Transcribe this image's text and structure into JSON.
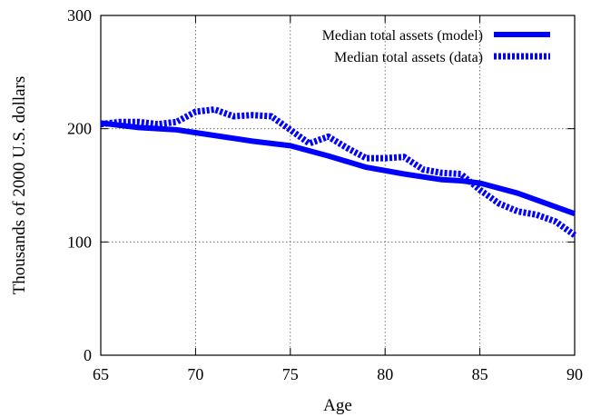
{
  "chart_data": {
    "type": "line",
    "xlabel": "Age",
    "ylabel": "Thousands of 2000 U.S. dollars",
    "xlim": [
      65,
      90
    ],
    "ylim": [
      0,
      300
    ],
    "x_ticks": [
      "65",
      "70",
      "75",
      "80",
      "85",
      "90"
    ],
    "y_ticks": [
      "0",
      "100",
      "200",
      "300"
    ],
    "grid": true,
    "legend_position": "top-right",
    "series_color": "#0000ff",
    "series": [
      {
        "name": "Median total assets (model)",
        "style": "solid",
        "x": [
          65,
          67,
          69,
          71,
          73,
          75,
          77,
          79,
          81,
          83,
          84,
          85,
          87,
          89,
          90
        ],
        "y": [
          205,
          201,
          199,
          194,
          189,
          185,
          176,
          166,
          160,
          155,
          154,
          152,
          143,
          131,
          125
        ]
      },
      {
        "name": "Median total assets (data)",
        "style": "dashed",
        "x": [
          65,
          66,
          67,
          68,
          69,
          70,
          71,
          72,
          73,
          74,
          75,
          76,
          77,
          78,
          79,
          80,
          81,
          82,
          83,
          84,
          85,
          86,
          87,
          88,
          89,
          90
        ],
        "y": [
          204,
          206,
          206,
          204,
          206,
          215,
          217,
          211,
          212,
          211,
          199,
          187,
          193,
          183,
          174,
          174,
          175,
          164,
          161,
          160,
          146,
          134,
          127,
          124,
          118,
          106
        ]
      }
    ]
  }
}
